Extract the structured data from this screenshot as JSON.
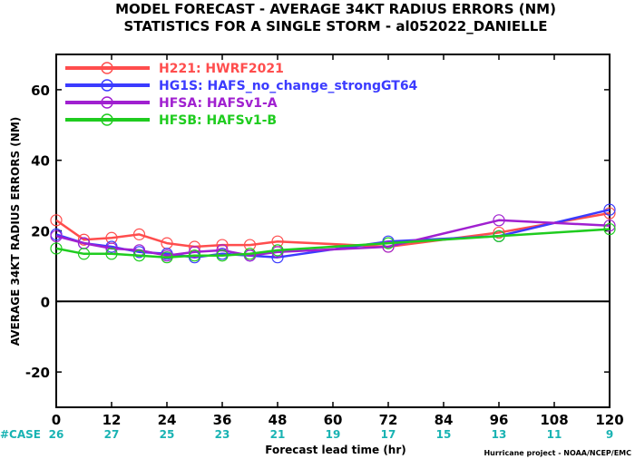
{
  "chart_data": {
    "type": "line",
    "title": "MODEL FORECAST - AVERAGE 34KT RADIUS ERRORS (NM)",
    "subtitle": "STATISTICS FOR A SINGLE STORM - al052022_DANIELLE",
    "xlabel": "Forecast lead time (hr)",
    "ylabel": "AVERAGE 34KT RADIUS ERRORS (NM)",
    "xlim": [
      0,
      120
    ],
    "ylim": [
      -30,
      70
    ],
    "x_ticks": [
      0,
      12,
      24,
      36,
      48,
      60,
      72,
      84,
      96,
      108,
      120
    ],
    "y_ticks": [
      -20,
      0,
      20,
      40,
      60
    ],
    "grid": false,
    "legend_position": "top-left",
    "case_label": "#CASE",
    "case_counts": [
      26,
      27,
      25,
      23,
      21,
      19,
      17,
      15,
      13,
      11,
      9
    ],
    "credit": "Hurricane project - NOAA/NCEP/EMC",
    "series": [
      {
        "name": "H221: HWRF2021",
        "color": "#ff4d4d",
        "x": [
          0,
          6,
          12,
          18,
          24,
          30,
          36,
          42,
          48,
          72,
          96,
          120
        ],
        "y": [
          23.0,
          17.5,
          18.0,
          19.0,
          16.5,
          15.5,
          16.0,
          16.0,
          17.0,
          15.5,
          19.5,
          25.0
        ]
      },
      {
        "name": "HG1S: HAFS_no_change_strongGT64",
        "color": "#3b3bff",
        "x": [
          0,
          6,
          12,
          18,
          24,
          30,
          36,
          42,
          48,
          72,
          96,
          120
        ],
        "y": [
          19.0,
          16.5,
          15.5,
          14.0,
          13.5,
          12.5,
          13.5,
          13.0,
          12.5,
          17.0,
          18.5,
          26.0
        ]
      },
      {
        "name": "HFSA: HAFSv1-A",
        "color": "#a020d0",
        "x": [
          0,
          6,
          12,
          18,
          24,
          30,
          36,
          42,
          48,
          72,
          96,
          120
        ],
        "y": [
          18.5,
          16.5,
          15.0,
          14.5,
          13.0,
          14.0,
          14.5,
          13.0,
          14.0,
          15.5,
          23.0,
          21.5
        ]
      },
      {
        "name": "HFSB: HAFSv1-B",
        "color": "#1fcc1f",
        "x": [
          0,
          6,
          12,
          18,
          24,
          30,
          36,
          42,
          48,
          72,
          96,
          120
        ],
        "y": [
          15.0,
          13.5,
          13.5,
          13.0,
          12.5,
          13.0,
          13.0,
          13.5,
          14.5,
          16.5,
          18.5,
          20.5
        ]
      }
    ]
  }
}
